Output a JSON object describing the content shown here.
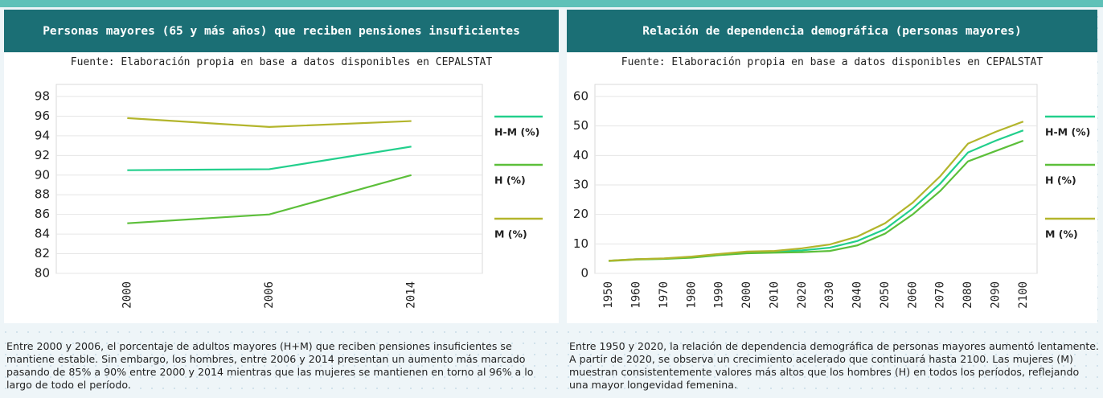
{
  "chart_data": [
    {
      "type": "line",
      "title": "Personas mayores (65 y más años) que reciben pensiones insuficientes",
      "source": "Fuente: Elaboración propia en base a datos disponibles en CEPALSTAT",
      "categories": [
        "2000",
        "2006",
        "2014"
      ],
      "series": [
        {
          "name": "H-M (%)",
          "color": "#22cf8c",
          "values": [
            90.5,
            90.6,
            92.9
          ]
        },
        {
          "name": "H (%)",
          "color": "#5cbf3a",
          "values": [
            85.1,
            86.0,
            90.0
          ]
        },
        {
          "name": "M (%)",
          "color": "#b3b52c",
          "values": [
            95.8,
            94.9,
            95.5
          ]
        }
      ],
      "ylim": [
        80,
        98
      ],
      "yticks": [
        80,
        82,
        84,
        86,
        88,
        90,
        92,
        94,
        96,
        98
      ],
      "description": "Entre 2000 y 2006, el porcentaje de adultos mayores (H+M) que reciben pensiones insuficientes se mantiene estable. Sin embargo, los hombres, entre 2006 y 2014 presentan un aumento más marcado pasando de 85% a 90% entre 2000 y 2014 mientras que las mujeres se mantienen en torno al 96% a lo largo de todo el período."
    },
    {
      "type": "line",
      "title": "Relación de dependencia demográfica (personas mayores)",
      "source": "Fuente: Elaboración propia en base a datos disponibles en CEPALSTAT",
      "categories": [
        "1950",
        "1960",
        "1970",
        "1980",
        "1990",
        "2000",
        "2010",
        "2020",
        "2030",
        "2040",
        "2050",
        "2060",
        "2070",
        "2080",
        "2090",
        "2100"
      ],
      "series": [
        {
          "name": "H-M (%)",
          "color": "#22cf8c",
          "values": [
            4.3,
            4.8,
            5.0,
            5.5,
            6.4,
            7.1,
            7.3,
            7.8,
            8.7,
            11,
            15,
            22,
            30.5,
            41,
            45,
            48.5
          ]
        },
        {
          "name": "H (%)",
          "color": "#5cbf3a",
          "values": [
            4.2,
            4.7,
            4.9,
            5.3,
            6.2,
            6.8,
            7.0,
            7.2,
            7.6,
            9.5,
            13.5,
            20,
            28,
            38,
            41.5,
            45
          ]
        },
        {
          "name": "M (%)",
          "color": "#b3b52c",
          "values": [
            4.3,
            4.8,
            5.1,
            5.7,
            6.6,
            7.4,
            7.6,
            8.5,
            9.8,
            12.5,
            17,
            24,
            33,
            44,
            48,
            51.5
          ]
        }
      ],
      "ylim": [
        0,
        60
      ],
      "yticks": [
        0,
        10,
        20,
        30,
        40,
        50,
        60
      ],
      "description": "Entre 1950 y 2020, la relación de dependencia demográfica de personas mayores aumentó lentamente. A partir de 2020, se observa un crecimiento acelerado que continuará hasta 2100. Las mujeres (M) muestran consistentemente valores más altos que los hombres (H) en todos los períodos, reflejando una mayor longevidad femenina."
    }
  ]
}
